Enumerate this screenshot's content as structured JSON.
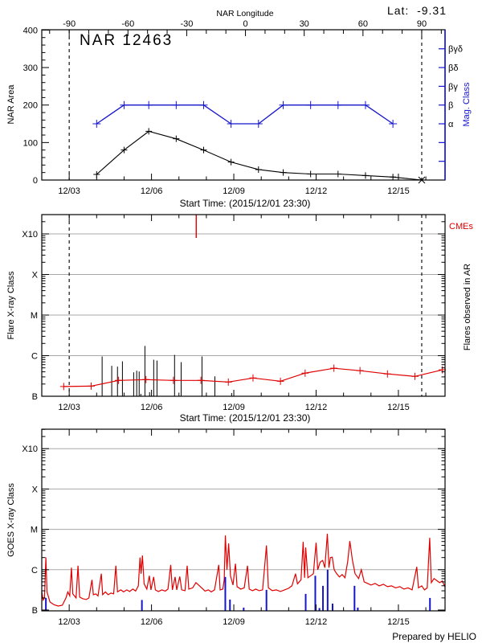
{
  "page": {
    "lat_label": "Lat:  -9.31",
    "prepared_by": "Prepared by HELIO",
    "colors": {
      "red": "#e00000",
      "blue": "#1515cc",
      "grid": "#a8a8a8",
      "black": "#000000"
    }
  },
  "chart_data": [
    {
      "type": "line",
      "title": "NAR 12463",
      "ylabel": "NAR Area",
      "y2label": "Mag. Class",
      "xlabel": "Start Time: (2015/12/01 23:30)",
      "ylim": [
        0,
        400
      ],
      "y_ticks": [
        0,
        100,
        200,
        300,
        400
      ],
      "y_minor_step": 20,
      "x_tick_labels": [
        "12/03",
        "12/06",
        "12/09",
        "12/12",
        "12/15"
      ],
      "x_tick_days": [
        3,
        6,
        9,
        12,
        15
      ],
      "x_range_days": [
        2.0,
        16.7
      ],
      "top_axis": {
        "label": "NAR Longitude",
        "major_ticks": [
          -90,
          -60,
          -30,
          0,
          30,
          60,
          90
        ],
        "minor_step_deg": 10,
        "lon_minus90_day": 3.0,
        "lon_plus90_day": 15.85
      },
      "dashed_lines_days": [
        3.0,
        15.85
      ],
      "series": [
        {
          "name": "nar-area",
          "color": "black",
          "marker": "plus",
          "points": [
            [
              4.0,
              15
            ],
            [
              5.0,
              80
            ],
            [
              5.9,
              130
            ],
            [
              6.9,
              110
            ],
            [
              7.9,
              80
            ],
            [
              8.9,
              48
            ],
            [
              9.9,
              28
            ],
            [
              10.8,
              20
            ],
            [
              11.8,
              16
            ],
            [
              12.8,
              16
            ],
            [
              13.8,
              12
            ],
            [
              14.8,
              8
            ],
            [
              15.85,
              0
            ]
          ],
          "end_marker": "x"
        },
        {
          "name": "mag-class",
          "color": "blue",
          "marker": "plus",
          "points": [
            [
              4.0,
              150
            ],
            [
              5.0,
              200
            ],
            [
              5.9,
              200
            ],
            [
              6.9,
              200
            ],
            [
              7.9,
              200
            ],
            [
              8.9,
              150
            ],
            [
              9.9,
              150
            ],
            [
              10.8,
              200
            ],
            [
              11.8,
              200
            ],
            [
              12.8,
              200
            ],
            [
              13.8,
              200
            ],
            [
              14.8,
              150
            ]
          ]
        }
      ],
      "y2_ticks": [
        {
          "value": 50,
          "label": ""
        },
        {
          "value": 100,
          "label": ""
        },
        {
          "value": 150,
          "label": "α"
        },
        {
          "value": 200,
          "label": "β"
        },
        {
          "value": 250,
          "label": "βγ"
        },
        {
          "value": 300,
          "label": "βδ"
        },
        {
          "value": 350,
          "label": "βγδ"
        }
      ]
    },
    {
      "type": "event",
      "ylabel": "Flare X-ray Class",
      "y2label": "Flares observed in AR",
      "cme_label": "CMEs",
      "xlabel": "Start Time: (2015/12/01 23:30)",
      "y_tick_labels": [
        "B",
        "C",
        "M",
        "X",
        "X10"
      ],
      "y_tick_u": [
        0,
        1,
        2,
        3,
        4
      ],
      "gridlines_u": [
        1,
        2,
        3,
        4
      ],
      "x_tick_labels": [
        "12/03",
        "12/06",
        "12/09",
        "12/12",
        "12/15"
      ],
      "x_tick_days": [
        3,
        6,
        9,
        12,
        15
      ],
      "dashed_lines_days": [
        3.0,
        15.85
      ],
      "flares": [
        [
          4.2,
          0.98
        ],
        [
          4.55,
          0.75
        ],
        [
          4.76,
          0.73
        ],
        [
          4.94,
          0.86
        ],
        [
          5.35,
          0.59
        ],
        [
          5.46,
          0.63
        ],
        [
          5.55,
          0.61
        ],
        [
          5.61,
          0.06
        ],
        [
          5.76,
          1.24
        ],
        [
          5.93,
          0.1
        ],
        [
          6.08,
          0.9
        ],
        [
          6.2,
          0.88
        ],
        [
          6.84,
          1.02
        ],
        [
          7.08,
          0.84
        ],
        [
          7.84,
          0.98
        ],
        [
          8.31,
          0.49
        ],
        [
          8.92,
          0.08
        ]
      ],
      "cme_days": [
        7.63
      ],
      "avg_flare_series": [
        [
          2.8,
          0.24
        ],
        [
          3.8,
          0.25
        ],
        [
          4.8,
          0.39
        ],
        [
          5.8,
          0.41
        ],
        [
          6.8,
          0.39
        ],
        [
          7.8,
          0.39
        ],
        [
          8.8,
          0.35
        ],
        [
          9.7,
          0.45
        ],
        [
          10.7,
          0.37
        ],
        [
          11.6,
          0.57
        ],
        [
          12.65,
          0.69
        ],
        [
          13.6,
          0.63
        ],
        [
          14.6,
          0.55
        ],
        [
          15.6,
          0.49
        ],
        [
          16.6,
          0.65
        ]
      ]
    },
    {
      "type": "line",
      "ylabel": "GOES X-ray Class",
      "y_tick_labels": [
        "B",
        "C",
        "M",
        "X",
        "X10"
      ],
      "y_tick_u": [
        0,
        1,
        2,
        3,
        4
      ],
      "gridlines_u": [
        1,
        2,
        3,
        4
      ],
      "x_tick_labels": [
        "12/03",
        "12/06",
        "12/09",
        "12/12",
        "12/15"
      ],
      "x_tick_days": [
        3,
        6,
        9,
        12,
        15
      ],
      "goes_series": [
        [
          2.0,
          0.45
        ],
        [
          2.05,
          0.25
        ],
        [
          2.1,
          0.3
        ],
        [
          2.15,
          1.3
        ],
        [
          2.19,
          0.45
        ],
        [
          2.3,
          0.2
        ],
        [
          2.45,
          0.13
        ],
        [
          2.6,
          0.1
        ],
        [
          2.75,
          0.12
        ],
        [
          2.88,
          0.3
        ],
        [
          2.95,
          0.45
        ],
        [
          3.02,
          0.35
        ],
        [
          3.08,
          1.05
        ],
        [
          3.13,
          0.4
        ],
        [
          3.25,
          0.3
        ],
        [
          3.32,
          1.1
        ],
        [
          3.38,
          0.32
        ],
        [
          3.5,
          0.28
        ],
        [
          3.62,
          0.26
        ],
        [
          3.72,
          0.3
        ],
        [
          3.83,
          0.75
        ],
        [
          3.88,
          0.38
        ],
        [
          3.97,
          0.4
        ],
        [
          4.05,
          0.35
        ],
        [
          4.17,
          0.9
        ],
        [
          4.22,
          0.38
        ],
        [
          4.32,
          0.45
        ],
        [
          4.42,
          0.38
        ],
        [
          4.52,
          0.42
        ],
        [
          4.62,
          0.4
        ],
        [
          4.7,
          1.1
        ],
        [
          4.76,
          0.45
        ],
        [
          4.88,
          0.5
        ],
        [
          4.98,
          0.45
        ],
        [
          5.1,
          0.5
        ],
        [
          5.2,
          0.46
        ],
        [
          5.32,
          0.52
        ],
        [
          5.42,
          0.47
        ],
        [
          5.52,
          0.6
        ],
        [
          5.58,
          1.3
        ],
        [
          5.62,
          0.9
        ],
        [
          5.67,
          1.35
        ],
        [
          5.73,
          0.65
        ],
        [
          5.83,
          0.52
        ],
        [
          5.92,
          0.85
        ],
        [
          5.98,
          0.5
        ],
        [
          6.08,
          0.82
        ],
        [
          6.14,
          0.5
        ],
        [
          6.25,
          0.46
        ],
        [
          6.38,
          0.5
        ],
        [
          6.5,
          0.47
        ],
        [
          6.6,
          0.52
        ],
        [
          6.7,
          1.12
        ],
        [
          6.76,
          0.5
        ],
        [
          6.86,
          0.82
        ],
        [
          6.92,
          0.5
        ],
        [
          7.03,
          0.83
        ],
        [
          7.1,
          0.5
        ],
        [
          7.22,
          0.48
        ],
        [
          7.3,
          1.1
        ],
        [
          7.36,
          0.52
        ],
        [
          7.5,
          0.55
        ],
        [
          7.62,
          0.68
        ],
        [
          7.72,
          0.62
        ],
        [
          7.83,
          0.55
        ],
        [
          7.95,
          0.47
        ],
        [
          8.07,
          0.5
        ],
        [
          8.18,
          0.45
        ],
        [
          8.3,
          0.5
        ],
        [
          8.45,
          1.12
        ],
        [
          8.5,
          0.5
        ],
        [
          8.6,
          0.52
        ],
        [
          8.65,
          0.75
        ],
        [
          8.69,
          1.85
        ],
        [
          8.75,
          1.0
        ],
        [
          8.81,
          1.65
        ],
        [
          8.88,
          0.85
        ],
        [
          8.97,
          0.62
        ],
        [
          9.06,
          1.15
        ],
        [
          9.12,
          0.58
        ],
        [
          9.25,
          0.52
        ],
        [
          9.38,
          0.55
        ],
        [
          9.5,
          1.1
        ],
        [
          9.56,
          0.52
        ],
        [
          9.68,
          0.48
        ],
        [
          9.8,
          0.52
        ],
        [
          9.92,
          0.48
        ],
        [
          10.05,
          0.5
        ],
        [
          10.19,
          1.6
        ],
        [
          10.26,
          0.55
        ],
        [
          10.4,
          0.48
        ],
        [
          10.55,
          0.5
        ],
        [
          10.7,
          0.46
        ],
        [
          10.85,
          0.5
        ],
        [
          11.0,
          0.54
        ],
        [
          11.12,
          0.6
        ],
        [
          11.25,
          0.9
        ],
        [
          11.32,
          0.65
        ],
        [
          11.45,
          0.75
        ],
        [
          11.53,
          1.69
        ],
        [
          11.58,
          0.8
        ],
        [
          11.62,
          1.55
        ],
        [
          11.7,
          0.8
        ],
        [
          11.8,
          0.85
        ],
        [
          11.9,
          0.9
        ],
        [
          12.0,
          1.67
        ],
        [
          12.06,
          1.0
        ],
        [
          12.15,
          1.19
        ],
        [
          12.24,
          1.23
        ],
        [
          12.32,
          1.05
        ],
        [
          12.41,
          1.89
        ],
        [
          12.47,
          1.05
        ],
        [
          12.52,
          1.3
        ],
        [
          12.59,
          1.31
        ],
        [
          12.66,
          1.0
        ],
        [
          12.75,
          0.9
        ],
        [
          12.85,
          0.82
        ],
        [
          12.95,
          0.88
        ],
        [
          13.05,
          0.8
        ],
        [
          13.15,
          1.2
        ],
        [
          13.23,
          1.71
        ],
        [
          13.32,
          1.25
        ],
        [
          13.42,
          0.9
        ],
        [
          13.55,
          0.78
        ],
        [
          13.65,
          1.0
        ],
        [
          13.75,
          0.7
        ],
        [
          13.88,
          0.66
        ],
        [
          14.0,
          0.62
        ],
        [
          14.15,
          0.66
        ],
        [
          14.3,
          0.6
        ],
        [
          14.45,
          0.64
        ],
        [
          14.6,
          0.58
        ],
        [
          14.75,
          0.6
        ],
        [
          14.9,
          0.55
        ],
        [
          15.05,
          0.58
        ],
        [
          15.2,
          0.52
        ],
        [
          15.35,
          0.55
        ],
        [
          15.5,
          0.5
        ],
        [
          15.67,
          1.07
        ],
        [
          15.73,
          0.55
        ],
        [
          15.85,
          0.6
        ],
        [
          15.95,
          0.5
        ],
        [
          16.05,
          0.55
        ],
        [
          16.14,
          1.79
        ],
        [
          16.2,
          0.68
        ],
        [
          16.3,
          0.78
        ],
        [
          16.4,
          0.73
        ],
        [
          16.5,
          0.68
        ],
        [
          16.6,
          0.72
        ],
        [
          16.7,
          0.57
        ]
      ],
      "particle_events": [
        [
          2.15,
          0.3
        ],
        [
          5.65,
          0.25
        ],
        [
          8.69,
          0.82
        ],
        [
          8.86,
          0.26
        ],
        [
          9.36,
          0.06
        ],
        [
          10.19,
          0.5
        ],
        [
          11.62,
          0.4
        ],
        [
          11.97,
          0.85
        ],
        [
          12.12,
          0.05
        ],
        [
          12.25,
          0.6
        ],
        [
          12.42,
          1.0
        ],
        [
          12.6,
          0.16
        ],
        [
          13.4,
          0.6
        ],
        [
          13.52,
          0.06
        ],
        [
          16.15,
          0.3
        ]
      ]
    }
  ]
}
